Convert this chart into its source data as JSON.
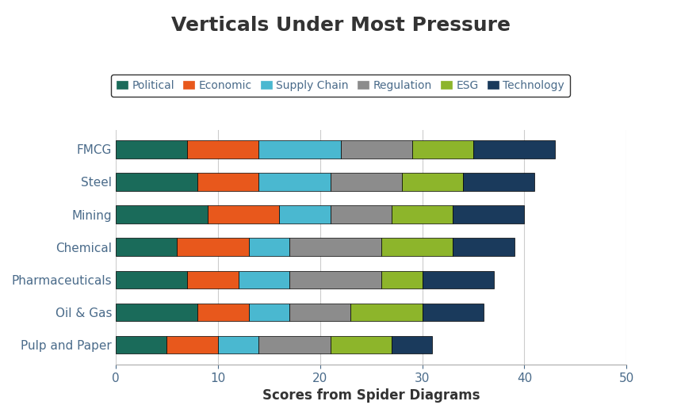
{
  "title": "Verticals Under Most Pressure",
  "xlabel": "Scores from Spider Diagrams",
  "categories": [
    "FMCG",
    "Steel",
    "Mining",
    "Chemical",
    "Pharmaceuticals",
    "Oil & Gas",
    "Pulp and Paper"
  ],
  "segments": [
    "Political",
    "Economic",
    "Supply Chain",
    "Regulation",
    "ESG",
    "Technology"
  ],
  "colors": [
    "#1a6b5a",
    "#e8581c",
    "#4ab8d0",
    "#8c8c8c",
    "#8db52b",
    "#1a3a5c"
  ],
  "values": [
    [
      7,
      7,
      8,
      7,
      6,
      8
    ],
    [
      8,
      6,
      7,
      7,
      6,
      7
    ],
    [
      9,
      7,
      5,
      6,
      6,
      7
    ],
    [
      6,
      7,
      4,
      9,
      7,
      6
    ],
    [
      7,
      5,
      5,
      9,
      4,
      7
    ],
    [
      8,
      5,
      4,
      6,
      7,
      6
    ],
    [
      5,
      5,
      4,
      7,
      6,
      4
    ]
  ],
  "xlim": [
    0,
    50
  ],
  "xticks": [
    0,
    10,
    20,
    30,
    40,
    50
  ],
  "title_fontsize": 18,
  "label_fontsize": 12,
  "tick_fontsize": 11,
  "legend_fontsize": 10,
  "background_color": "#ffffff",
  "text_color": "#4a6b8a",
  "title_color": "#333333",
  "bar_height": 0.55
}
